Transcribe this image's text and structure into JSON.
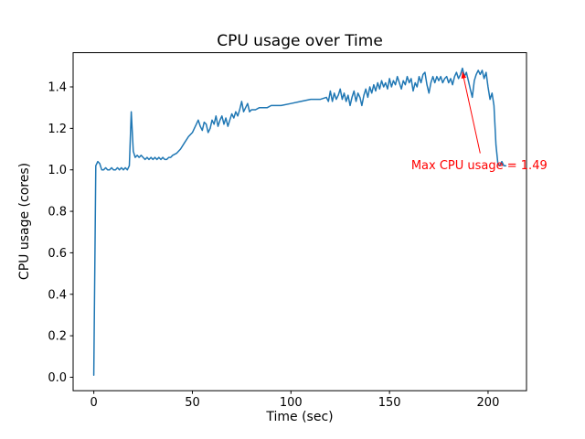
{
  "figure": {
    "background": "#ffffff"
  },
  "chart_data": {
    "type": "line",
    "title": "CPU usage over Time",
    "xlabel": "Time (sec)",
    "ylabel": "CPU usage (cores)",
    "xlim": [
      -10.5,
      219.5
    ],
    "ylim": [
      -0.065,
      1.565
    ],
    "grid": false,
    "legend": null,
    "xticks": [
      {
        "value": 0,
        "label": "0"
      },
      {
        "value": 50,
        "label": "50"
      },
      {
        "value": 100,
        "label": "100"
      },
      {
        "value": 150,
        "label": "150"
      },
      {
        "value": 200,
        "label": "200"
      }
    ],
    "yticks": [
      {
        "value": 0.0,
        "label": "0.0"
      },
      {
        "value": 0.2,
        "label": "0.2"
      },
      {
        "value": 0.4,
        "label": "0.4"
      },
      {
        "value": 0.6,
        "label": "0.6"
      },
      {
        "value": 0.8,
        "label": "0.8"
      },
      {
        "value": 1.0,
        "label": "1.0"
      },
      {
        "value": 1.2,
        "label": "1.2"
      },
      {
        "value": 1.4,
        "label": "1.4"
      }
    ],
    "series": [
      {
        "name": "CPU usage",
        "color": "#1f77b4",
        "points": [
          [
            0,
            0.01
          ],
          [
            1,
            1.02
          ],
          [
            2,
            1.04
          ],
          [
            3,
            1.03
          ],
          [
            4,
            1.0
          ],
          [
            5,
            1.0
          ],
          [
            6,
            1.01
          ],
          [
            7,
            1.0
          ],
          [
            8,
            1.0
          ],
          [
            9,
            1.01
          ],
          [
            10,
            1.0
          ],
          [
            11,
            1.0
          ],
          [
            12,
            1.01
          ],
          [
            13,
            1.0
          ],
          [
            14,
            1.01
          ],
          [
            15,
            1.0
          ],
          [
            16,
            1.01
          ],
          [
            17,
            1.0
          ],
          [
            18,
            1.02
          ],
          [
            19,
            1.28
          ],
          [
            20,
            1.09
          ],
          [
            21,
            1.06
          ],
          [
            22,
            1.07
          ],
          [
            23,
            1.06
          ],
          [
            24,
            1.07
          ],
          [
            25,
            1.06
          ],
          [
            26,
            1.05
          ],
          [
            27,
            1.06
          ],
          [
            28,
            1.05
          ],
          [
            29,
            1.06
          ],
          [
            30,
            1.05
          ],
          [
            31,
            1.06
          ],
          [
            32,
            1.05
          ],
          [
            33,
            1.06
          ],
          [
            34,
            1.05
          ],
          [
            35,
            1.06
          ],
          [
            36,
            1.05
          ],
          [
            37,
            1.05
          ],
          [
            38,
            1.06
          ],
          [
            39,
            1.06
          ],
          [
            40,
            1.07
          ],
          [
            42,
            1.08
          ],
          [
            44,
            1.1
          ],
          [
            46,
            1.13
          ],
          [
            48,
            1.16
          ],
          [
            50,
            1.18
          ],
          [
            51,
            1.2
          ],
          [
            52,
            1.22
          ],
          [
            53,
            1.24
          ],
          [
            54,
            1.21
          ],
          [
            55,
            1.19
          ],
          [
            56,
            1.23
          ],
          [
            57,
            1.22
          ],
          [
            58,
            1.18
          ],
          [
            59,
            1.2
          ],
          [
            60,
            1.24
          ],
          [
            61,
            1.22
          ],
          [
            62,
            1.26
          ],
          [
            63,
            1.21
          ],
          [
            64,
            1.24
          ],
          [
            65,
            1.26
          ],
          [
            66,
            1.22
          ],
          [
            67,
            1.25
          ],
          [
            68,
            1.21
          ],
          [
            69,
            1.24
          ],
          [
            70,
            1.27
          ],
          [
            71,
            1.25
          ],
          [
            72,
            1.28
          ],
          [
            73,
            1.26
          ],
          [
            74,
            1.29
          ],
          [
            75,
            1.33
          ],
          [
            76,
            1.28
          ],
          [
            77,
            1.3
          ],
          [
            78,
            1.32
          ],
          [
            79,
            1.28
          ],
          [
            80,
            1.29
          ],
          [
            82,
            1.29
          ],
          [
            84,
            1.3
          ],
          [
            86,
            1.3
          ],
          [
            88,
            1.3
          ],
          [
            90,
            1.31
          ],
          [
            95,
            1.31
          ],
          [
            100,
            1.32
          ],
          [
            105,
            1.33
          ],
          [
            110,
            1.34
          ],
          [
            115,
            1.34
          ],
          [
            118,
            1.35
          ],
          [
            119,
            1.33
          ],
          [
            120,
            1.38
          ],
          [
            121,
            1.33
          ],
          [
            122,
            1.37
          ],
          [
            123,
            1.34
          ],
          [
            124,
            1.36
          ],
          [
            125,
            1.39
          ],
          [
            126,
            1.34
          ],
          [
            127,
            1.37
          ],
          [
            128,
            1.33
          ],
          [
            129,
            1.36
          ],
          [
            130,
            1.31
          ],
          [
            131,
            1.35
          ],
          [
            132,
            1.38
          ],
          [
            133,
            1.33
          ],
          [
            134,
            1.37
          ],
          [
            135,
            1.35
          ],
          [
            136,
            1.31
          ],
          [
            137,
            1.36
          ],
          [
            138,
            1.39
          ],
          [
            139,
            1.35
          ],
          [
            140,
            1.4
          ],
          [
            141,
            1.37
          ],
          [
            142,
            1.41
          ],
          [
            143,
            1.38
          ],
          [
            144,
            1.42
          ],
          [
            145,
            1.39
          ],
          [
            146,
            1.43
          ],
          [
            147,
            1.4
          ],
          [
            148,
            1.42
          ],
          [
            149,
            1.39
          ],
          [
            150,
            1.44
          ],
          [
            151,
            1.4
          ],
          [
            152,
            1.43
          ],
          [
            153,
            1.41
          ],
          [
            154,
            1.45
          ],
          [
            155,
            1.42
          ],
          [
            156,
            1.39
          ],
          [
            157,
            1.43
          ],
          [
            158,
            1.41
          ],
          [
            159,
            1.45
          ],
          [
            160,
            1.42
          ],
          [
            161,
            1.44
          ],
          [
            162,
            1.38
          ],
          [
            163,
            1.42
          ],
          [
            164,
            1.4
          ],
          [
            165,
            1.45
          ],
          [
            166,
            1.42
          ],
          [
            167,
            1.46
          ],
          [
            168,
            1.47
          ],
          [
            169,
            1.41
          ],
          [
            170,
            1.37
          ],
          [
            171,
            1.42
          ],
          [
            172,
            1.45
          ],
          [
            173,
            1.42
          ],
          [
            174,
            1.45
          ],
          [
            175,
            1.43
          ],
          [
            176,
            1.45
          ],
          [
            177,
            1.42
          ],
          [
            178,
            1.44
          ],
          [
            179,
            1.45
          ],
          [
            180,
            1.42
          ],
          [
            181,
            1.44
          ],
          [
            182,
            1.41
          ],
          [
            183,
            1.45
          ],
          [
            184,
            1.47
          ],
          [
            185,
            1.44
          ],
          [
            186,
            1.46
          ],
          [
            187,
            1.49
          ],
          [
            188,
            1.45
          ],
          [
            189,
            1.47
          ],
          [
            190,
            1.43
          ],
          [
            191,
            1.39
          ],
          [
            192,
            1.35
          ],
          [
            193,
            1.43
          ],
          [
            194,
            1.46
          ],
          [
            195,
            1.48
          ],
          [
            196,
            1.46
          ],
          [
            197,
            1.48
          ],
          [
            198,
            1.44
          ],
          [
            199,
            1.47
          ],
          [
            200,
            1.4
          ],
          [
            201,
            1.34
          ],
          [
            202,
            1.37
          ],
          [
            203,
            1.31
          ],
          [
            204,
            1.12
          ],
          [
            205,
            1.03
          ],
          [
            206,
            1.02
          ],
          [
            207,
            1.04
          ],
          [
            208,
            1.02
          ],
          [
            209,
            1.02
          ]
        ]
      }
    ],
    "annotation": {
      "text": "Max CPU usage = 1.49",
      "color": "#ff0000",
      "point": [
        187,
        1.49
      ],
      "arrow_start": [
        196,
        1.08
      ],
      "text_anchor": [
        161,
        1.0
      ]
    }
  }
}
